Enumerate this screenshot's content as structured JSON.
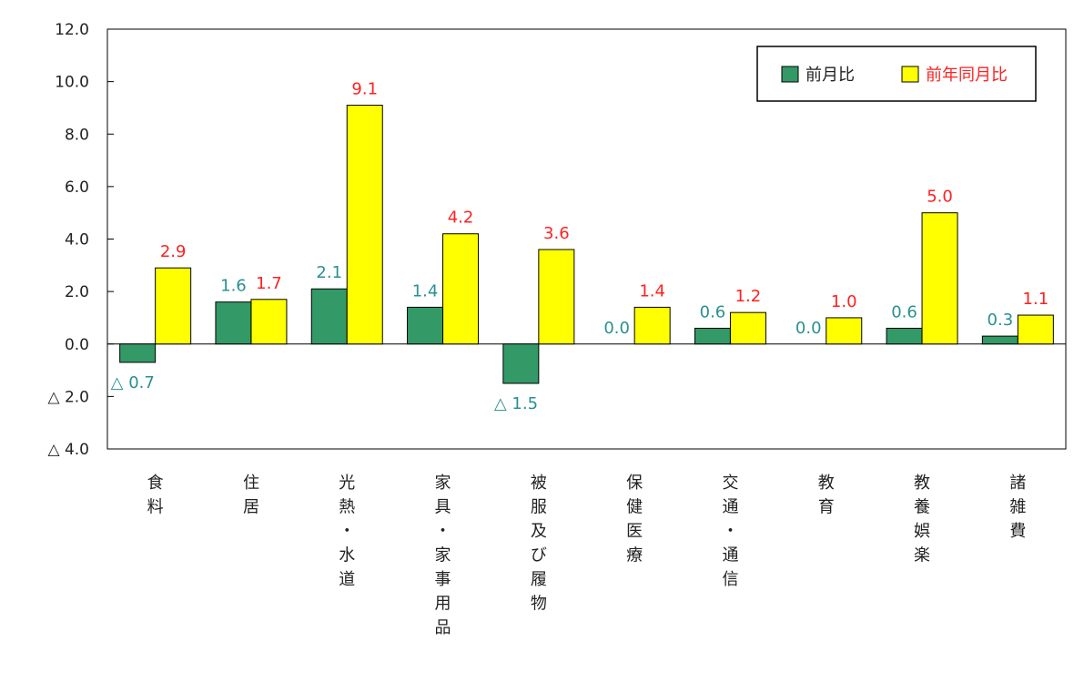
{
  "chart_data": {
    "type": "bar",
    "categories": [
      "食料",
      "住居",
      "光熱・水道",
      "家具・家事用品",
      "被服及び履物",
      "保健医療",
      "交通・通信",
      "教育",
      "教養娯楽",
      "諸雑費"
    ],
    "series": [
      {
        "name": "前月比",
        "color": "#339966",
        "label_color": "#2a9090",
        "values": [
          -0.7,
          1.6,
          2.1,
          1.4,
          -1.5,
          0.0,
          0.6,
          0.0,
          0.6,
          0.3
        ]
      },
      {
        "name": "前年同月比",
        "color": "#ffff00",
        "label_color": "#ff2020",
        "values": [
          2.9,
          1.7,
          9.1,
          4.2,
          3.6,
          1.4,
          1.2,
          1.0,
          5.0,
          1.1
        ]
      }
    ],
    "ylim": [
      -4,
      12
    ],
    "yticks": [
      12,
      10,
      8,
      6,
      4,
      2,
      0,
      -2,
      -4
    ],
    "ytick_labels": [
      "12.0",
      "10.0",
      "8.0",
      "6.0",
      "4.0",
      "2.0",
      "0.0",
      "△ 2.0",
      "△ 4.0"
    ],
    "negative_prefix": "△ ",
    "legend_position": "top-right",
    "grid": false
  }
}
